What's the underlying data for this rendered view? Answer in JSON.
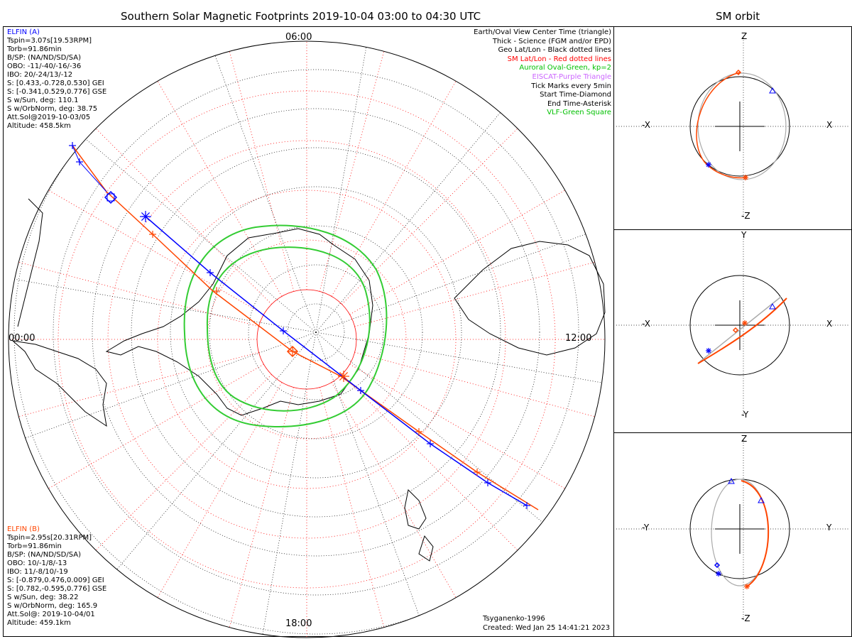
{
  "main": {
    "title": "Southern Solar Magnetic Footprints 2019-10-04 03:00 to 04:30 UTC",
    "time_labels": {
      "top": "06:00",
      "left": "00:00",
      "right": "12:00",
      "bottom": "18:00"
    }
  },
  "right": {
    "title": "SM orbit",
    "panels": [
      {
        "up": "Z",
        "down": "-Z",
        "left": "-X",
        "right": "X"
      },
      {
        "up": "Y",
        "down": "-Y",
        "left": "-X",
        "right": "X"
      },
      {
        "up": "Z",
        "down": "-Z",
        "left": "-Y",
        "right": "Y"
      }
    ]
  },
  "sat_a": {
    "name": "ELFIN (A)",
    "color": "#0000ff",
    "lines": [
      "Tspin=3.07s[19.53RPM]",
      "Torb=91.86min",
      "B/SP: (NA/ND/SD/SA)",
      "OBO: -11/-40/-16/-36",
      "IBO: 20/-24/13/-12",
      "S: [0.433,-0.728,0.530] GEI",
      "S: [-0.341,0.529,0.776] GSE",
      "S w/Sun, deg: 110.1",
      "S w/OrbNorm, deg: 38.75",
      "Att.Sol@2019-10-03/05",
      "Altitude: 458.5km"
    ]
  },
  "sat_b": {
    "name": "ELFIN (B)",
    "color": "#ff4500",
    "lines": [
      "Tspin=2.95s[20.31RPM]",
      "Torb=91.86min",
      "B/SP: (NA/ND/SD/SA)",
      "OBO: 10/-1/8/-13",
      "IBO: 11/-8/10/-19",
      "S: [-0.879,0.476,0.009] GEI",
      "S: [0.782,-0.595,0.776] GSE",
      "S w/Sun, deg: 38.22",
      "S w/OrbNorm, deg: 165.9",
      "Att.Sol@: 2019-10-04/01",
      "Altitude: 459.1km"
    ]
  },
  "legend": [
    {
      "text": "Earth/Oval View Center Time (triangle)",
      "color": "#000000"
    },
    {
      "text": "Thick - Science (FGM and/or EPD)",
      "color": "#000000"
    },
    {
      "text": "Geo Lat/Lon - Black dotted lines",
      "color": "#000000"
    },
    {
      "text": "SM Lat/Lon - Red dotted lines",
      "color": "#ff0000"
    },
    {
      "text": "Auroral Oval-Green, kp=2",
      "color": "#00c000"
    },
    {
      "text": "EISCAT-Purple Triangle",
      "color": "#cc66ff"
    },
    {
      "text": "Tick Marks every 5min",
      "color": "#000000"
    },
    {
      "text": "Start Time-Diamond",
      "color": "#000000"
    },
    {
      "text": "End Time-Asterisk",
      "color": "#000000"
    },
    {
      "text": "VLF-Green Square",
      "color": "#00c000"
    }
  ],
  "footer": {
    "model": "Tsyganenko-1996",
    "created": "Created: Wed Jan 25 14:41:21 2023"
  }
}
